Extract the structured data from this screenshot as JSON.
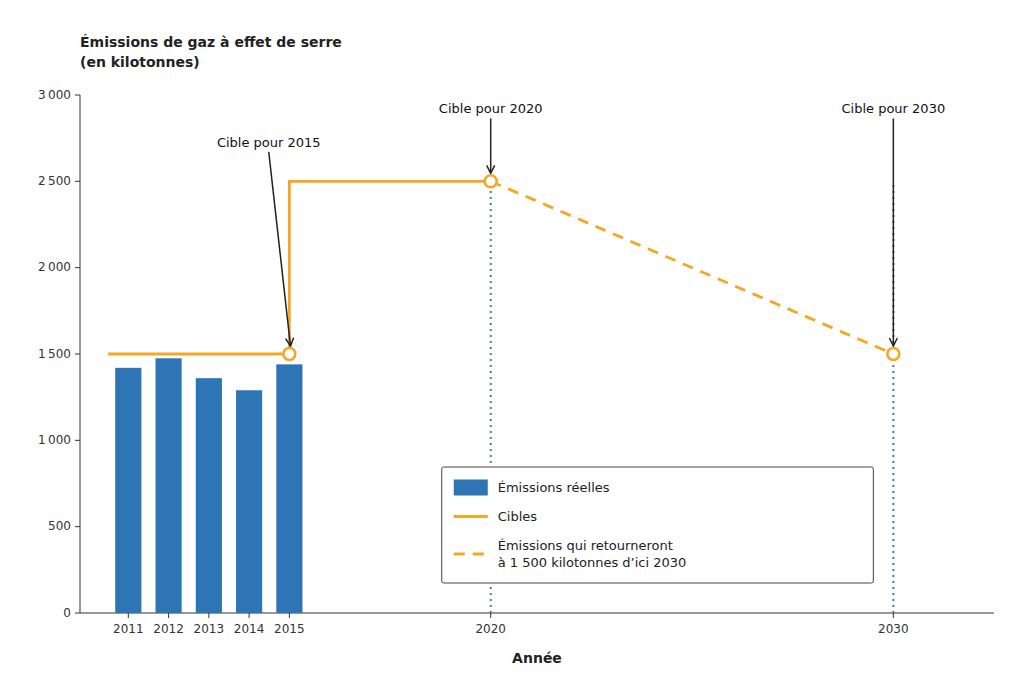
{
  "chart_data": {
    "type": "bar",
    "y_label": "Émissions de gaz à effet de serre\n(en kilotonnes)",
    "x_label": "Année",
    "xlim": [
      2009.8,
      2032.5
    ],
    "ylim": [
      0,
      3000
    ],
    "xticks": [
      2011,
      2012,
      2013,
      2014,
      2015,
      2020,
      2030
    ],
    "yticks": [
      0,
      500,
      {
        "value": 1000,
        "label": "1 000"
      },
      {
        "value": 1500,
        "label": "1 500"
      },
      {
        "value": 2000,
        "label": "2 000"
      },
      {
        "value": 2500,
        "label": "2 500"
      },
      {
        "value": 3000,
        "label": "3 000"
      }
    ],
    "grid": false,
    "legend": "lower right",
    "series": [
      {
        "name": "Émissions réelles",
        "type": "bar",
        "color": "#2E75B6",
        "x": [
          2011,
          2012,
          2013,
          2014,
          2015
        ],
        "values": [
          1420,
          1475,
          1360,
          1290,
          1440
        ]
      },
      {
        "name": "Cibles",
        "type": "line",
        "line_style": "solid",
        "color": "#F5A623",
        "x": [
          2010.5,
          2015,
          2015,
          2020
        ],
        "values": [
          1500,
          1500,
          2500,
          2500
        ]
      },
      {
        "name": "Émissions qui retourneront\nà 1 500 kilotonnes d’ici 2030",
        "type": "line",
        "line_style": "dashed",
        "color": "#F5A623",
        "x": [
          2020,
          2030
        ],
        "values": [
          2500,
          1500
        ]
      },
      {
        "type": "scatter",
        "marker": "circle",
        "color": "#F5A623",
        "x": [
          2015,
          2020,
          2030
        ],
        "values": [
          1500,
          2500,
          1500
        ]
      }
    ],
    "vlines": {
      "color": "#3B78B0",
      "line_style": "dotted",
      "x": [
        2020,
        2030
      ],
      "y": [
        0,
        2500
      ]
    },
    "annotations": [
      {
        "text": "Cible pour 2015",
        "x": 2015.05,
        "y": 1500,
        "text_x": 2013.2,
        "text_y": 2720
      },
      {
        "text": "Cible pour 2020",
        "x": 2020,
        "y": 2500,
        "text_x": 2020,
        "text_y": 2870
      },
      {
        "text": "Cible pour 2030",
        "x": 2030,
        "y": 1500,
        "text_x": 2030,
        "text_y": 2870
      }
    ]
  }
}
